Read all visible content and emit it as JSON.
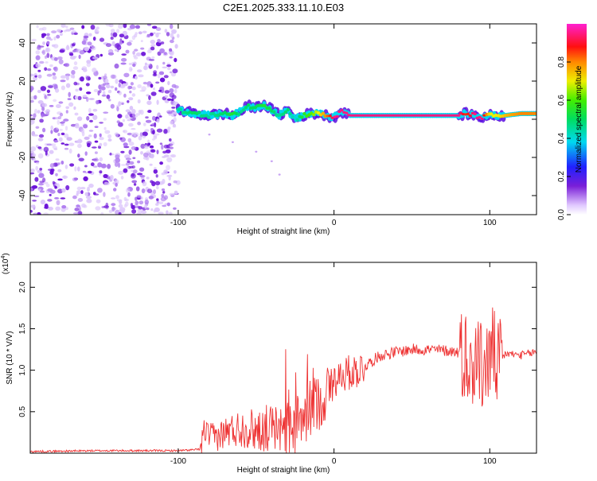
{
  "page_title": "C2E1.2025.333.11.10.E03",
  "chart_data": [
    {
      "type": "heatmap",
      "title": "C2E1.2025.333.11.10.E03",
      "xlabel": "Height of straight line (km)",
      "ylabel": "Frequency (Hz)",
      "xlim": [
        -195,
        130
      ],
      "ylim": [
        -50,
        50
      ],
      "xticks": [
        -100,
        0,
        100
      ],
      "xtick_labels": [
        "-100",
        "0",
        "100"
      ],
      "yticks": [
        -40,
        -20,
        0,
        20,
        40
      ],
      "ytick_labels": [
        "-40",
        "-20",
        "0",
        "20",
        "40"
      ],
      "colorbar": {
        "label": "Normalized spectral amplitude",
        "range": [
          0,
          1
        ],
        "ticks": [
          0.0,
          0.2,
          0.4,
          0.6,
          0.8
        ],
        "tick_labels": [
          "0.0",
          "0.2",
          "0.4",
          "0.6",
          "0.8"
        ]
      },
      "noise_region_x": [
        -195,
        -100
      ],
      "ridge": {
        "x": [
          -100,
          -90,
          -80,
          -70,
          -65,
          -60,
          -55,
          -50,
          -45,
          -40,
          -35,
          -30,
          -25,
          -20,
          -15,
          -10,
          -5,
          0,
          5,
          10,
          20,
          40,
          60,
          80,
          85,
          90,
          95,
          100,
          105,
          110,
          120,
          130
        ],
        "freq": [
          5,
          3,
          2,
          3,
          2,
          4,
          7,
          6,
          8,
          5,
          2,
          5,
          0,
          2,
          3,
          3,
          2,
          1,
          4,
          2,
          2,
          2,
          2,
          2,
          3,
          2,
          1,
          2,
          2,
          2,
          3,
          3
        ],
        "amplitude": [
          0.45,
          0.5,
          0.45,
          0.5,
          0.55,
          0.45,
          0.5,
          0.5,
          0.55,
          0.5,
          0.45,
          0.5,
          0.4,
          0.55,
          0.6,
          0.7,
          0.8,
          0.95,
          0.95,
          0.95,
          0.95,
          0.95,
          0.95,
          0.95,
          0.85,
          0.95,
          0.95,
          0.7,
          0.7,
          0.75,
          0.8,
          0.8
        ]
      },
      "faint_streak": {
        "x": [
          -80,
          -65,
          -50,
          -40,
          -35
        ],
        "freq": [
          -8,
          -12,
          -17,
          -22,
          -29
        ]
      }
    },
    {
      "type": "line",
      "xlabel": "Height of straight line (km)",
      "ylabel": "SNR (10 * V/V)",
      "multiplier_label": "(x10",
      "multiplier_exp": "4",
      "multiplier_close": ")",
      "xlim": [
        -195,
        130
      ],
      "ylim": [
        0,
        2.3
      ],
      "xticks": [
        -100,
        0,
        100
      ],
      "xtick_labels": [
        "-100",
        "0",
        "100"
      ],
      "yticks": [
        0.5,
        1.0,
        1.5,
        2.0
      ],
      "ytick_labels": [
        "0.5",
        "1.0",
        "1.5",
        "2.0"
      ],
      "color": "#ee3333",
      "series": [
        {
          "name": "SNR",
          "x": [
            -195,
            -150,
            -100,
            -90,
            -85,
            -84,
            -80,
            -75,
            -70,
            -65,
            -60,
            -55,
            -50,
            -45,
            -40,
            -35,
            -30,
            -25,
            -20,
            -15,
            -10,
            -5,
            0,
            5,
            10,
            15,
            20,
            25,
            30,
            40,
            50,
            60,
            70,
            80,
            85,
            88,
            90,
            92,
            95,
            100,
            102,
            105,
            110,
            120,
            130
          ],
          "y": [
            0.02,
            0.03,
            0.03,
            0.04,
            0.05,
            0.3,
            0.2,
            0.2,
            0.25,
            0.28,
            0.3,
            0.3,
            0.28,
            0.3,
            0.3,
            0.3,
            0.32,
            0.32,
            0.4,
            0.55,
            0.62,
            0.7,
            0.88,
            0.95,
            0.97,
            1.0,
            1.05,
            1.12,
            1.18,
            1.22,
            1.25,
            1.25,
            1.24,
            1.22,
            1.2,
            1.05,
            1.1,
            1.2,
            1.0,
            1.15,
            1.25,
            1.05,
            1.2,
            1.18,
            1.22
          ]
        }
      ]
    }
  ]
}
